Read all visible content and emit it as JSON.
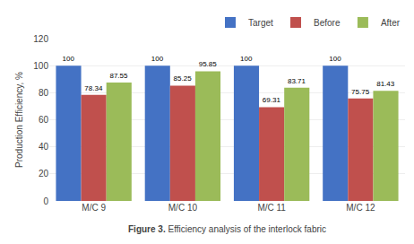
{
  "chart_data": {
    "type": "bar",
    "categories": [
      "M/C 9",
      "M/C 10",
      "M/C 11",
      "M/C 12"
    ],
    "series": [
      {
        "name": "Target",
        "color": "#4472C4",
        "values": [
          100,
          100,
          100,
          100
        ]
      },
      {
        "name": "Before",
        "color": "#C0504D",
        "values": [
          78.34,
          85.25,
          69.31,
          75.75
        ]
      },
      {
        "name": "After",
        "color": "#9BBB59",
        "values": [
          87.55,
          95.85,
          83.71,
          81.43
        ]
      }
    ],
    "y_label": "Production Efficiency, %",
    "ylim": [
      0,
      120
    ],
    "yticks": [
      0,
      20,
      40,
      60,
      80,
      100,
      120
    ],
    "grid": true,
    "legend": "upper right",
    "data_labels": true,
    "annotations": [
      "Figure 3.",
      "Efficiency analysis of the interlock fabric"
    ]
  }
}
